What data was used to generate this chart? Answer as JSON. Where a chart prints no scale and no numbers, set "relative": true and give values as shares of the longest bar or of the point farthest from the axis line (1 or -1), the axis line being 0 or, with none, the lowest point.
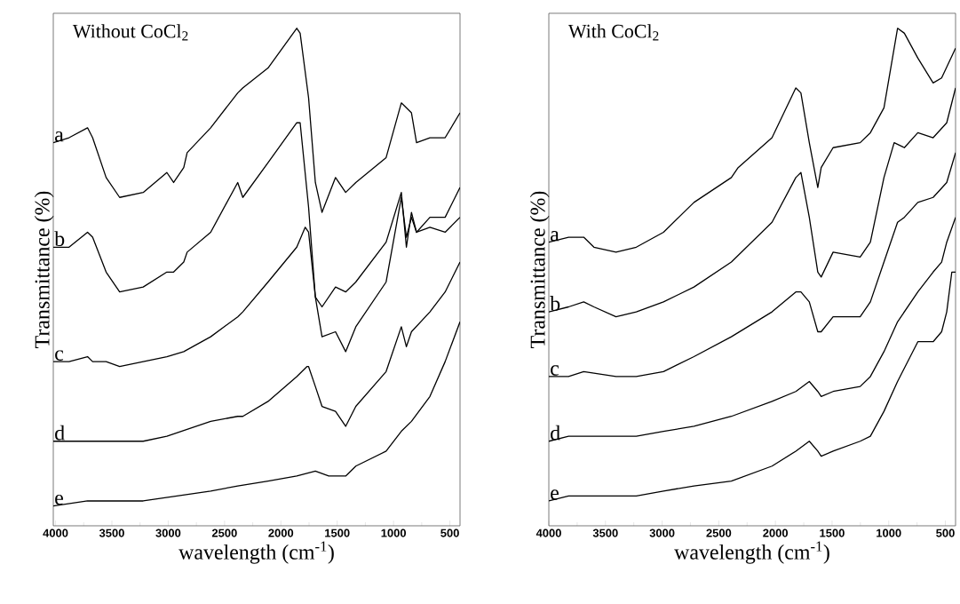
{
  "chart_data": [
    {
      "type": "line",
      "title": "Without CoCl$_{2}$",
      "xlabel": "wavelength (cm$^{-1}$)",
      "ylabel": "Transmittance (%)",
      "relative": true,
      "xlim": [
        4020,
        410
      ],
      "xticks": [
        4000,
        3500,
        3000,
        2500,
        2000,
        1500,
        1000,
        500
      ],
      "series": [
        {
          "name": "a",
          "color": "#000000",
          "x": [
            4020,
            3880,
            3716,
            3671,
            3551,
            3431,
            3222,
            3012,
            2952,
            2862,
            2832,
            2623,
            2383,
            2338,
            2114,
            1859,
            1829,
            1754,
            1694,
            1635,
            1515,
            1425,
            1335,
            1066,
            931,
            841,
            796,
            677,
            542,
            410
          ],
          "values": [
            0.77,
            0.78,
            0.8,
            0.78,
            0.7,
            0.66,
            0.67,
            0.71,
            0.69,
            0.72,
            0.75,
            0.8,
            0.87,
            0.88,
            0.92,
            1.0,
            0.99,
            0.86,
            0.69,
            0.63,
            0.7,
            0.67,
            0.69,
            0.74,
            0.85,
            0.83,
            0.77,
            0.78,
            0.78,
            0.83
          ]
        },
        {
          "name": "b",
          "color": "#000000",
          "x": [
            4020,
            3880,
            3716,
            3671,
            3551,
            3431,
            3222,
            3012,
            2952,
            2862,
            2832,
            2623,
            2383,
            2338,
            2114,
            1859,
            1829,
            1754,
            1694,
            1635,
            1515,
            1425,
            1335,
            1066,
            931,
            886,
            841,
            796,
            677,
            542,
            410
          ],
          "values": [
            0.56,
            0.56,
            0.59,
            0.58,
            0.51,
            0.47,
            0.48,
            0.51,
            0.51,
            0.53,
            0.55,
            0.59,
            0.69,
            0.66,
            0.73,
            0.81,
            0.81,
            0.64,
            0.46,
            0.44,
            0.48,
            0.47,
            0.49,
            0.57,
            0.67,
            0.56,
            0.63,
            0.59,
            0.62,
            0.62,
            0.68
          ]
        },
        {
          "name": "c",
          "color": "#000000",
          "x": [
            4020,
            3880,
            3716,
            3671,
            3551,
            3431,
            3222,
            3012,
            2862,
            2623,
            2383,
            2338,
            2114,
            1859,
            1784,
            1754,
            1694,
            1635,
            1515,
            1425,
            1335,
            1066,
            931,
            886,
            841,
            796,
            677,
            542,
            410
          ],
          "values": [
            0.33,
            0.33,
            0.34,
            0.33,
            0.33,
            0.32,
            0.33,
            0.34,
            0.35,
            0.38,
            0.42,
            0.43,
            0.49,
            0.56,
            0.6,
            0.59,
            0.46,
            0.38,
            0.39,
            0.35,
            0.4,
            0.49,
            0.66,
            0.58,
            0.62,
            0.59,
            0.6,
            0.59,
            0.62
          ]
        },
        {
          "name": "d",
          "color": "#000000",
          "x": [
            4020,
            3880,
            3716,
            3431,
            3222,
            3012,
            2623,
            2383,
            2338,
            2114,
            1859,
            1769,
            1754,
            1694,
            1635,
            1515,
            1425,
            1335,
            1066,
            931,
            886,
            841,
            677,
            542,
            410
          ],
          "values": [
            0.17,
            0.17,
            0.17,
            0.17,
            0.17,
            0.18,
            0.21,
            0.22,
            0.22,
            0.25,
            0.3,
            0.32,
            0.32,
            0.28,
            0.24,
            0.23,
            0.2,
            0.24,
            0.31,
            0.4,
            0.36,
            0.39,
            0.43,
            0.47,
            0.53
          ]
        },
        {
          "name": "e",
          "color": "#000000",
          "x": [
            4020,
            3716,
            3222,
            2623,
            2383,
            2114,
            1859,
            1694,
            1575,
            1425,
            1335,
            1066,
            931,
            841,
            677,
            542,
            410
          ],
          "values": [
            0.04,
            0.05,
            0.05,
            0.07,
            0.08,
            0.09,
            0.1,
            0.11,
            0.1,
            0.1,
            0.12,
            0.15,
            0.19,
            0.21,
            0.26,
            0.33,
            0.41
          ]
        }
      ]
    },
    {
      "type": "line",
      "title": "With CoCl$_{2}$",
      "xlabel": "wavelength (cm$^{-1}$)",
      "ylabel": "Transmittance (%)",
      "relative": true,
      "xlim": [
        4000,
        410
      ],
      "xticks": [
        4000,
        3500,
        3000,
        2500,
        2000,
        1500,
        1000,
        500
      ],
      "series": [
        {
          "name": "a",
          "color": "#000000",
          "x": [
            4000,
            3826,
            3692,
            3602,
            3407,
            3228,
            2988,
            2719,
            2389,
            2329,
            2030,
            1820,
            1775,
            1701,
            1626,
            1596,
            1491,
            1252,
            1162,
            1042,
            922,
            862,
            743,
            608,
            533,
            410
          ],
          "values": [
            0.57,
            0.58,
            0.58,
            0.56,
            0.55,
            0.56,
            0.59,
            0.65,
            0.7,
            0.72,
            0.78,
            0.88,
            0.87,
            0.77,
            0.68,
            0.72,
            0.76,
            0.77,
            0.79,
            0.84,
            1.0,
            0.99,
            0.94,
            0.89,
            0.9,
            0.96
          ]
        },
        {
          "name": "b",
          "color": "#000000",
          "x": [
            4000,
            3826,
            3692,
            3602,
            3407,
            3228,
            2988,
            2719,
            2389,
            2030,
            1820,
            1775,
            1701,
            1626,
            1596,
            1491,
            1252,
            1162,
            1042,
            952,
            862,
            743,
            608,
            488,
            410
          ],
          "values": [
            0.43,
            0.44,
            0.45,
            0.44,
            0.42,
            0.43,
            0.45,
            0.48,
            0.53,
            0.61,
            0.7,
            0.71,
            0.62,
            0.51,
            0.5,
            0.55,
            0.54,
            0.57,
            0.7,
            0.77,
            0.76,
            0.79,
            0.78,
            0.81,
            0.88
          ]
        },
        {
          "name": "c",
          "color": "#000000",
          "x": [
            4000,
            3826,
            3692,
            3407,
            3228,
            2988,
            2719,
            2389,
            2030,
            1820,
            1775,
            1701,
            1626,
            1596,
            1491,
            1252,
            1162,
            1042,
            922,
            862,
            743,
            608,
            488,
            410
          ],
          "values": [
            0.3,
            0.3,
            0.31,
            0.3,
            0.3,
            0.31,
            0.34,
            0.38,
            0.43,
            0.47,
            0.47,
            0.45,
            0.39,
            0.39,
            0.42,
            0.42,
            0.45,
            0.53,
            0.61,
            0.62,
            0.65,
            0.66,
            0.69,
            0.75
          ]
        },
        {
          "name": "d",
          "color": "#000000",
          "x": [
            4000,
            3826,
            3602,
            3407,
            3228,
            2988,
            2719,
            2389,
            2030,
            1820,
            1701,
            1626,
            1596,
            1491,
            1252,
            1162,
            1042,
            922,
            743,
            608,
            533,
            488,
            410
          ],
          "values": [
            0.17,
            0.18,
            0.18,
            0.18,
            0.18,
            0.19,
            0.2,
            0.22,
            0.25,
            0.27,
            0.29,
            0.27,
            0.26,
            0.27,
            0.28,
            0.3,
            0.35,
            0.41,
            0.47,
            0.51,
            0.53,
            0.57,
            0.62
          ]
        },
        {
          "name": "e",
          "color": "#000000",
          "x": [
            4000,
            3826,
            3602,
            3407,
            3228,
            2988,
            2719,
            2389,
            2030,
            1820,
            1701,
            1626,
            1596,
            1491,
            1252,
            1162,
            1042,
            922,
            743,
            608,
            533,
            488,
            443,
            410
          ],
          "values": [
            0.05,
            0.06,
            0.06,
            0.06,
            0.06,
            0.07,
            0.08,
            0.09,
            0.12,
            0.15,
            0.17,
            0.15,
            0.14,
            0.15,
            0.17,
            0.18,
            0.23,
            0.29,
            0.37,
            0.37,
            0.39,
            0.43,
            0.51,
            0.51
          ]
        }
      ]
    }
  ]
}
